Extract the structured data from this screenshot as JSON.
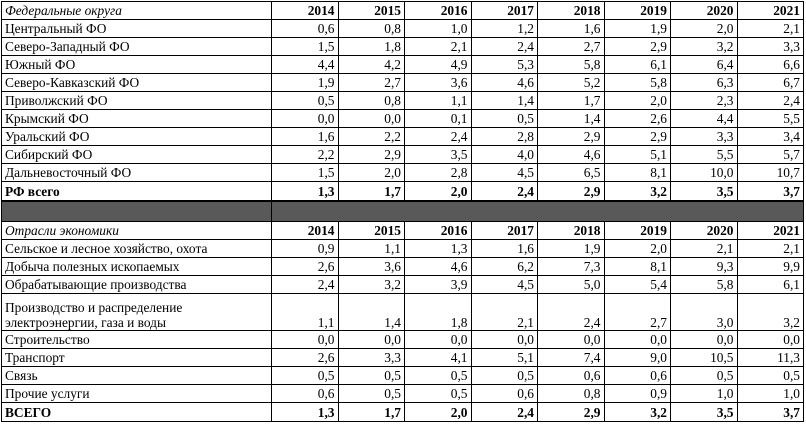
{
  "years": [
    "2014",
    "2015",
    "2016",
    "2017",
    "2018",
    "2019",
    "2020",
    "2021"
  ],
  "sections": [
    {
      "header": "Федеральные округа",
      "rows": [
        {
          "label": "Центральный ФО",
          "values": [
            "0,6",
            "0,8",
            "1,0",
            "1,2",
            "1,6",
            "1,9",
            "2,0",
            "2,1"
          ]
        },
        {
          "label": "Северо-Западный ФО",
          "values": [
            "1,5",
            "1,8",
            "2,1",
            "2,4",
            "2,7",
            "2,9",
            "3,2",
            "3,3"
          ]
        },
        {
          "label": "Южный ФО",
          "values": [
            "4,4",
            "4,2",
            "4,9",
            "5,3",
            "5,8",
            "6,1",
            "6,4",
            "6,6"
          ]
        },
        {
          "label": "Северо-Кавказский ФО",
          "values": [
            "1,9",
            "2,7",
            "3,6",
            "4,6",
            "5,2",
            "5,8",
            "6,3",
            "6,7"
          ]
        },
        {
          "label": "Приволжский ФО",
          "values": [
            "0,5",
            "0,8",
            "1,1",
            "1,4",
            "1,7",
            "2,0",
            "2,3",
            "2,4"
          ]
        },
        {
          "label": "Крымский ФО",
          "values": [
            "0,0",
            "0,0",
            "0,1",
            "0,5",
            "1,4",
            "2,6",
            "4,4",
            "5,5"
          ]
        },
        {
          "label": "Уральский ФО",
          "values": [
            "1,6",
            "2,2",
            "2,4",
            "2,8",
            "2,9",
            "2,9",
            "3,3",
            "3,4"
          ]
        },
        {
          "label": "Сибирский ФО",
          "values": [
            "2,2",
            "2,9",
            "3,5",
            "4,0",
            "4,6",
            "5,1",
            "5,5",
            "5,7"
          ]
        },
        {
          "label": "Дальневосточный ФО",
          "values": [
            "1,5",
            "2,0",
            "2,8",
            "4,5",
            "6,5",
            "8,1",
            "10,0",
            "10,7"
          ]
        }
      ],
      "total": {
        "label": "РФ всего",
        "values": [
          "1,3",
          "1,7",
          "2,0",
          "2,4",
          "2,9",
          "3,2",
          "3,5",
          "3,7"
        ]
      }
    },
    {
      "header": "Отрасли экономики",
      "rows": [
        {
          "label": "Сельское и лесное хозяйство, охота",
          "values": [
            "0,9",
            "1,1",
            "1,3",
            "1,6",
            "1,9",
            "2,0",
            "2,1",
            "2,1"
          ]
        },
        {
          "label": "Добыча полезных ископаемых",
          "values": [
            "2,6",
            "3,6",
            "4,6",
            "6,2",
            "7,3",
            "8,1",
            "9,3",
            "9,9"
          ]
        },
        {
          "label": "Обрабатывающие производства",
          "values": [
            "2,4",
            "3,2",
            "3,9",
            "4,5",
            "5,0",
            "5,4",
            "5,8",
            "6,1"
          ]
        },
        {
          "label": "Производство и распределение электроэнергии, газа и воды",
          "values": [
            "1,1",
            "1,4",
            "1,8",
            "2,1",
            "2,4",
            "2,7",
            "3,0",
            "3,2"
          ],
          "tall": true
        },
        {
          "label": "Строительство",
          "values": [
            "0,0",
            "0,0",
            "0,0",
            "0,0",
            "0,0",
            "0,0",
            "0,0",
            "0,0"
          ]
        },
        {
          "label": "Транспорт",
          "values": [
            "2,6",
            "3,3",
            "4,1",
            "5,1",
            "7,4",
            "9,0",
            "10,5",
            "11,3"
          ]
        },
        {
          "label": "Связь",
          "values": [
            "0,5",
            "0,5",
            "0,5",
            "0,5",
            "0,6",
            "0,6",
            "0,5",
            "0,5"
          ]
        },
        {
          "label": "Прочие услуги",
          "values": [
            "0,6",
            "0,5",
            "0,5",
            "0,6",
            "0,8",
            "0,9",
            "1,0",
            "1,0"
          ]
        }
      ],
      "total": {
        "label": "ВСЕГО",
        "values": [
          "1,3",
          "1,7",
          "2,0",
          "2,4",
          "2,9",
          "3,2",
          "3,5",
          "3,7"
        ]
      }
    }
  ],
  "colors": {
    "separator": "#595959",
    "border": "#000000",
    "text": "#000000"
  }
}
